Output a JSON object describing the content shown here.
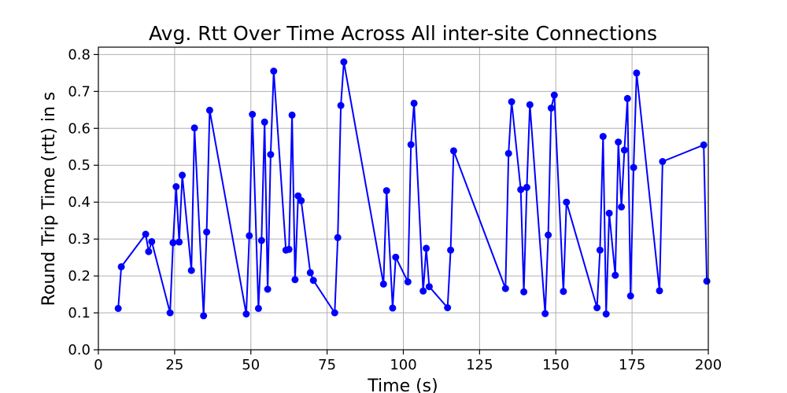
{
  "chart_data": {
    "type": "line",
    "title": "Avg. Rtt Over Time Across All inter-site Connections",
    "xlabel": "Time (s)",
    "ylabel": "Round Trip Time (rtt) in s",
    "xlim": [
      0,
      200
    ],
    "ylim": [
      0.0,
      0.82
    ],
    "xticks": [
      0,
      25,
      50,
      75,
      100,
      125,
      150,
      175,
      200
    ],
    "xtick_labels": [
      "0",
      "25",
      "50",
      "75",
      "100",
      "125",
      "150",
      "175",
      "200"
    ],
    "yticks": [
      0.0,
      0.1,
      0.2,
      0.3,
      0.4,
      0.5,
      0.6,
      0.7,
      0.8
    ],
    "ytick_labels": [
      "0.0",
      "0.1",
      "0.2",
      "0.3",
      "0.4",
      "0.5",
      "0.6",
      "0.7",
      "0.8"
    ],
    "grid": true,
    "color": "#0000ff",
    "marker": "circle",
    "series": [
      {
        "x": [
          6.5,
          7.5,
          15.5,
          16.5,
          17.5,
          23.5,
          24.5,
          25.5,
          26.5,
          27.5,
          30.5,
          31.5,
          34.5,
          35.5,
          36.5,
          48.5,
          49.5,
          50.5,
          52.5,
          53.5,
          54.5,
          55.5,
          56.5,
          57.5,
          61.5,
          62.5,
          63.5,
          64.5,
          65.5,
          66.5,
          69.5,
          70.5,
          77.5,
          78.5,
          79.5,
          80.5,
          93.5,
          94.5,
          96.5,
          97.5,
          101.5,
          102.5,
          103.5,
          106.5,
          107.5,
          108.5,
          114.5,
          115.5,
          116.5,
          133.5,
          134.5,
          135.5,
          138.5,
          139.5,
          140.5,
          141.5,
          146.5,
          147.5,
          148.5,
          149.5,
          152.5,
          153.5,
          163.5,
          164.5,
          165.5,
          166.5,
          167.5,
          169.5,
          170.5,
          171.5,
          172.5,
          173.5,
          174.5,
          175.5,
          176.5,
          184.0,
          185.0,
          198.5,
          199.5
        ],
        "y": [
          0.112,
          0.225,
          0.313,
          0.266,
          0.293,
          0.1,
          0.29,
          0.442,
          0.292,
          0.473,
          0.215,
          0.601,
          0.092,
          0.319,
          0.649,
          0.097,
          0.309,
          0.638,
          0.112,
          0.296,
          0.617,
          0.164,
          0.529,
          0.755,
          0.27,
          0.272,
          0.636,
          0.19,
          0.417,
          0.404,
          0.209,
          0.188,
          0.1,
          0.304,
          0.662,
          0.78,
          0.178,
          0.431,
          0.113,
          0.251,
          0.184,
          0.556,
          0.668,
          0.159,
          0.275,
          0.171,
          0.114,
          0.27,
          0.539,
          0.166,
          0.532,
          0.672,
          0.434,
          0.157,
          0.44,
          0.664,
          0.098,
          0.311,
          0.655,
          0.69,
          0.158,
          0.4,
          0.114,
          0.27,
          0.578,
          0.097,
          0.37,
          0.202,
          0.563,
          0.387,
          0.541,
          0.681,
          0.146,
          0.494,
          0.75,
          0.16,
          0.51,
          0.555,
          0.186
        ]
      }
    ]
  }
}
